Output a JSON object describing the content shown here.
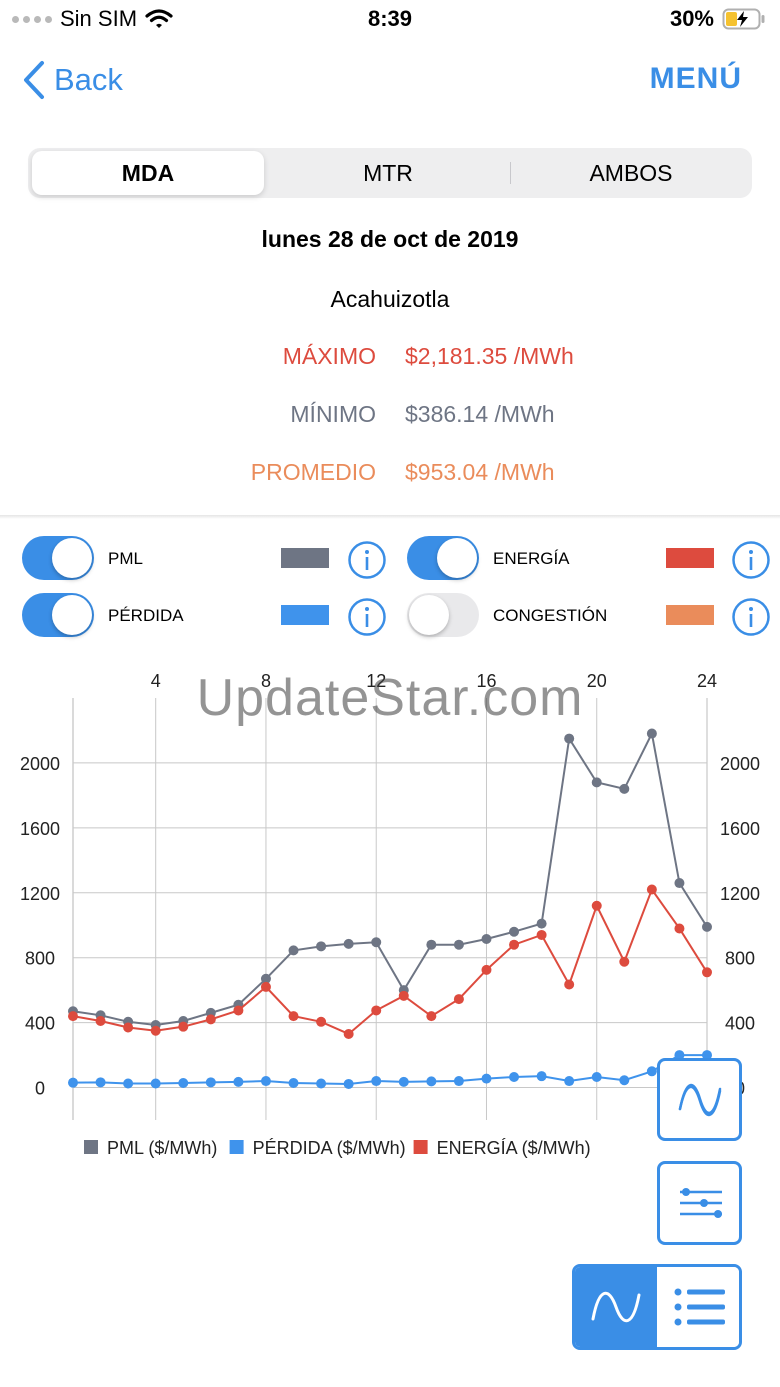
{
  "status": {
    "carrier": "Sin SIM",
    "time": "8:39",
    "battery": "30%"
  },
  "nav": {
    "back_label": "Back",
    "menu_label": "MENÚ"
  },
  "tabs": [
    "MDA",
    "MTR",
    "AMBOS"
  ],
  "header": {
    "date": "lunes 28 de oct de 2019",
    "node": "Acahuizotla",
    "max_label": "MÁXIMO",
    "max_value": "$2,181.35 /MWh",
    "min_label": "MÍNIMO",
    "min_value": "$386.14 /MWh",
    "avg_label": "PROMEDIO",
    "avg_value": "$953.04 /MWh"
  },
  "toggles": [
    {
      "label": "PML",
      "on": true,
      "color": "#6e7584"
    },
    {
      "label": "ENERGÍA",
      "on": true,
      "color": "#dd4b3e"
    },
    {
      "label": "PÉRDIDA",
      "on": true,
      "color": "#3f93ec"
    },
    {
      "label": "CONGESTIÓN",
      "on": false,
      "color": "#ea8c5b"
    }
  ],
  "watermark": "UpdateStar.com",
  "chart_data": {
    "type": "line",
    "x": [
      1,
      2,
      3,
      4,
      5,
      6,
      7,
      8,
      9,
      10,
      11,
      12,
      13,
      14,
      15,
      16,
      17,
      18,
      19,
      20,
      21,
      22,
      23,
      24
    ],
    "x_ticks": [
      4,
      8,
      12,
      16,
      20,
      24
    ],
    "y_ticks": [
      0,
      400,
      800,
      1200,
      1600,
      2000
    ],
    "ylim": [
      -200,
      2400
    ],
    "xlim": [
      1,
      24
    ],
    "grid": true,
    "legend_position": "bottom",
    "series": [
      {
        "name": "PML ($/MWh)",
        "color": "#6e7584",
        "values": [
          470,
          445,
          405,
          385,
          410,
          460,
          510,
          670,
          845,
          870,
          885,
          895,
          600,
          880,
          880,
          915,
          960,
          1010,
          2150,
          1880,
          1840,
          2181,
          1260,
          990
        ]
      },
      {
        "name": "PÉRDIDA ($/MWh)",
        "color": "#3f93ec",
        "values": [
          30,
          32,
          25,
          25,
          28,
          32,
          35,
          40,
          28,
          25,
          22,
          40,
          35,
          38,
          40,
          55,
          65,
          70,
          40,
          65,
          45,
          100,
          200,
          200
        ]
      },
      {
        "name": "ENERGÍA ($/MWh)",
        "color": "#dd4b3e",
        "values": [
          440,
          410,
          370,
          350,
          375,
          420,
          475,
          620,
          440,
          405,
          330,
          475,
          565,
          440,
          545,
          725,
          880,
          940,
          635,
          1120,
          775,
          1220,
          980,
          710
        ]
      }
    ]
  }
}
